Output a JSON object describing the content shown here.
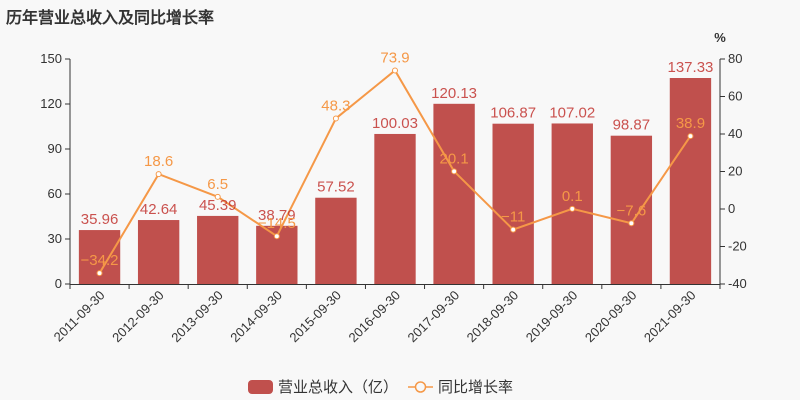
{
  "title": "历年营业总收入及同比增长率",
  "colors": {
    "bar": "#c0504d",
    "line": "#f59847",
    "axis": "#333333",
    "background": "#f8f8f8"
  },
  "right_axis_unit": "%",
  "legend": {
    "bar_label": "营业总收入（亿）",
    "line_label": "同比增长率"
  },
  "chart_data": {
    "type": "bar",
    "title": "历年营业总收入及同比增长率",
    "categories": [
      "2011-09-30",
      "2012-09-30",
      "2013-09-30",
      "2014-09-30",
      "2015-09-30",
      "2016-09-30",
      "2017-09-30",
      "2018-09-30",
      "2019-09-30",
      "2020-09-30",
      "2021-09-30"
    ],
    "series": [
      {
        "name": "营业总收入（亿）",
        "type": "bar",
        "axis": "left",
        "values": [
          35.96,
          42.64,
          45.39,
          38.79,
          57.52,
          100.03,
          120.13,
          106.87,
          107.02,
          98.87,
          137.33
        ]
      },
      {
        "name": "同比增长率",
        "type": "line",
        "axis": "right",
        "values": [
          -34.2,
          18.6,
          6.5,
          -14.5,
          48.3,
          73.9,
          20.1,
          -11,
          0.1,
          -7.6,
          38.9
        ]
      }
    ],
    "xlabel": "",
    "ylabel": "",
    "ylabel_right": "%",
    "ylim": [
      0,
      150
    ],
    "ylim_right": [
      -40,
      80
    ],
    "yticks": [
      0,
      30,
      60,
      90,
      120,
      150
    ],
    "yticks_right": [
      -40,
      -20,
      0,
      20,
      40,
      60,
      80
    ],
    "grid": false,
    "legend_position": "bottom"
  }
}
